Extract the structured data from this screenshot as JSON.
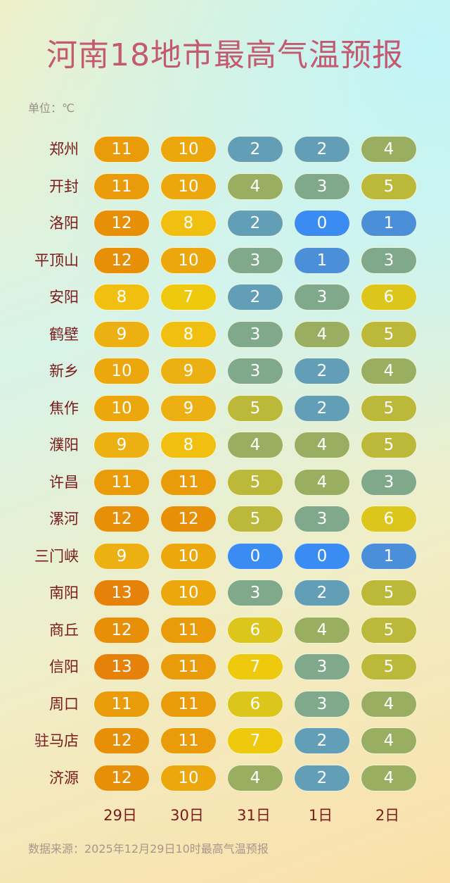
{
  "chart_data": {
    "type": "heatmap",
    "title": "河南18地市最高气温预报",
    "unit": "单位：℃",
    "categories": [
      "29日",
      "30日",
      "31日",
      "1日",
      "2日"
    ],
    "rows": [
      {
        "city": "郑州",
        "values": [
          11,
          10,
          2,
          2,
          4
        ]
      },
      {
        "city": "开封",
        "values": [
          11,
          10,
          4,
          3,
          5
        ]
      },
      {
        "city": "洛阳",
        "values": [
          12,
          8,
          2,
          0,
          1
        ]
      },
      {
        "city": "平顶山",
        "values": [
          12,
          10,
          3,
          1,
          3
        ]
      },
      {
        "city": "安阳",
        "values": [
          8,
          7,
          2,
          3,
          6
        ]
      },
      {
        "city": "鹤壁",
        "values": [
          9,
          8,
          3,
          4,
          5
        ]
      },
      {
        "city": "新乡",
        "values": [
          10,
          9,
          3,
          2,
          4
        ]
      },
      {
        "city": "焦作",
        "values": [
          10,
          9,
          5,
          2,
          5
        ]
      },
      {
        "city": "濮阳",
        "values": [
          9,
          8,
          4,
          4,
          5
        ]
      },
      {
        "city": "许昌",
        "values": [
          11,
          11,
          5,
          4,
          3
        ]
      },
      {
        "city": "漯河",
        "values": [
          12,
          12,
          5,
          3,
          6
        ]
      },
      {
        "city": "三门峡",
        "values": [
          9,
          10,
          0,
          0,
          1
        ]
      },
      {
        "city": "南阳",
        "values": [
          13,
          10,
          3,
          2,
          5
        ]
      },
      {
        "city": "商丘",
        "values": [
          12,
          11,
          6,
          4,
          5
        ]
      },
      {
        "city": "信阳",
        "values": [
          13,
          11,
          7,
          3,
          5
        ]
      },
      {
        "city": "周口",
        "values": [
          11,
          11,
          6,
          3,
          4
        ]
      },
      {
        "city": "驻马店",
        "values": [
          12,
          11,
          7,
          2,
          4
        ]
      },
      {
        "city": "济源",
        "values": [
          12,
          10,
          4,
          2,
          4
        ]
      }
    ],
    "colors": {
      "0": "#3a8cf2",
      "1": "#4a8fd8",
      "2": "#629fb6",
      "3": "#80a88a",
      "4": "#9aae62",
      "5": "#bcb83a",
      "6": "#dcc61c",
      "7": "#eec90e",
      "8": "#f0bf10",
      "9": "#edb012",
      "10": "#eba70c",
      "11": "#e99b0a",
      "12": "#e88f08",
      "13": "#e6820a"
    }
  },
  "source": "数据来源：2025年12月29日10时最高气温预报"
}
